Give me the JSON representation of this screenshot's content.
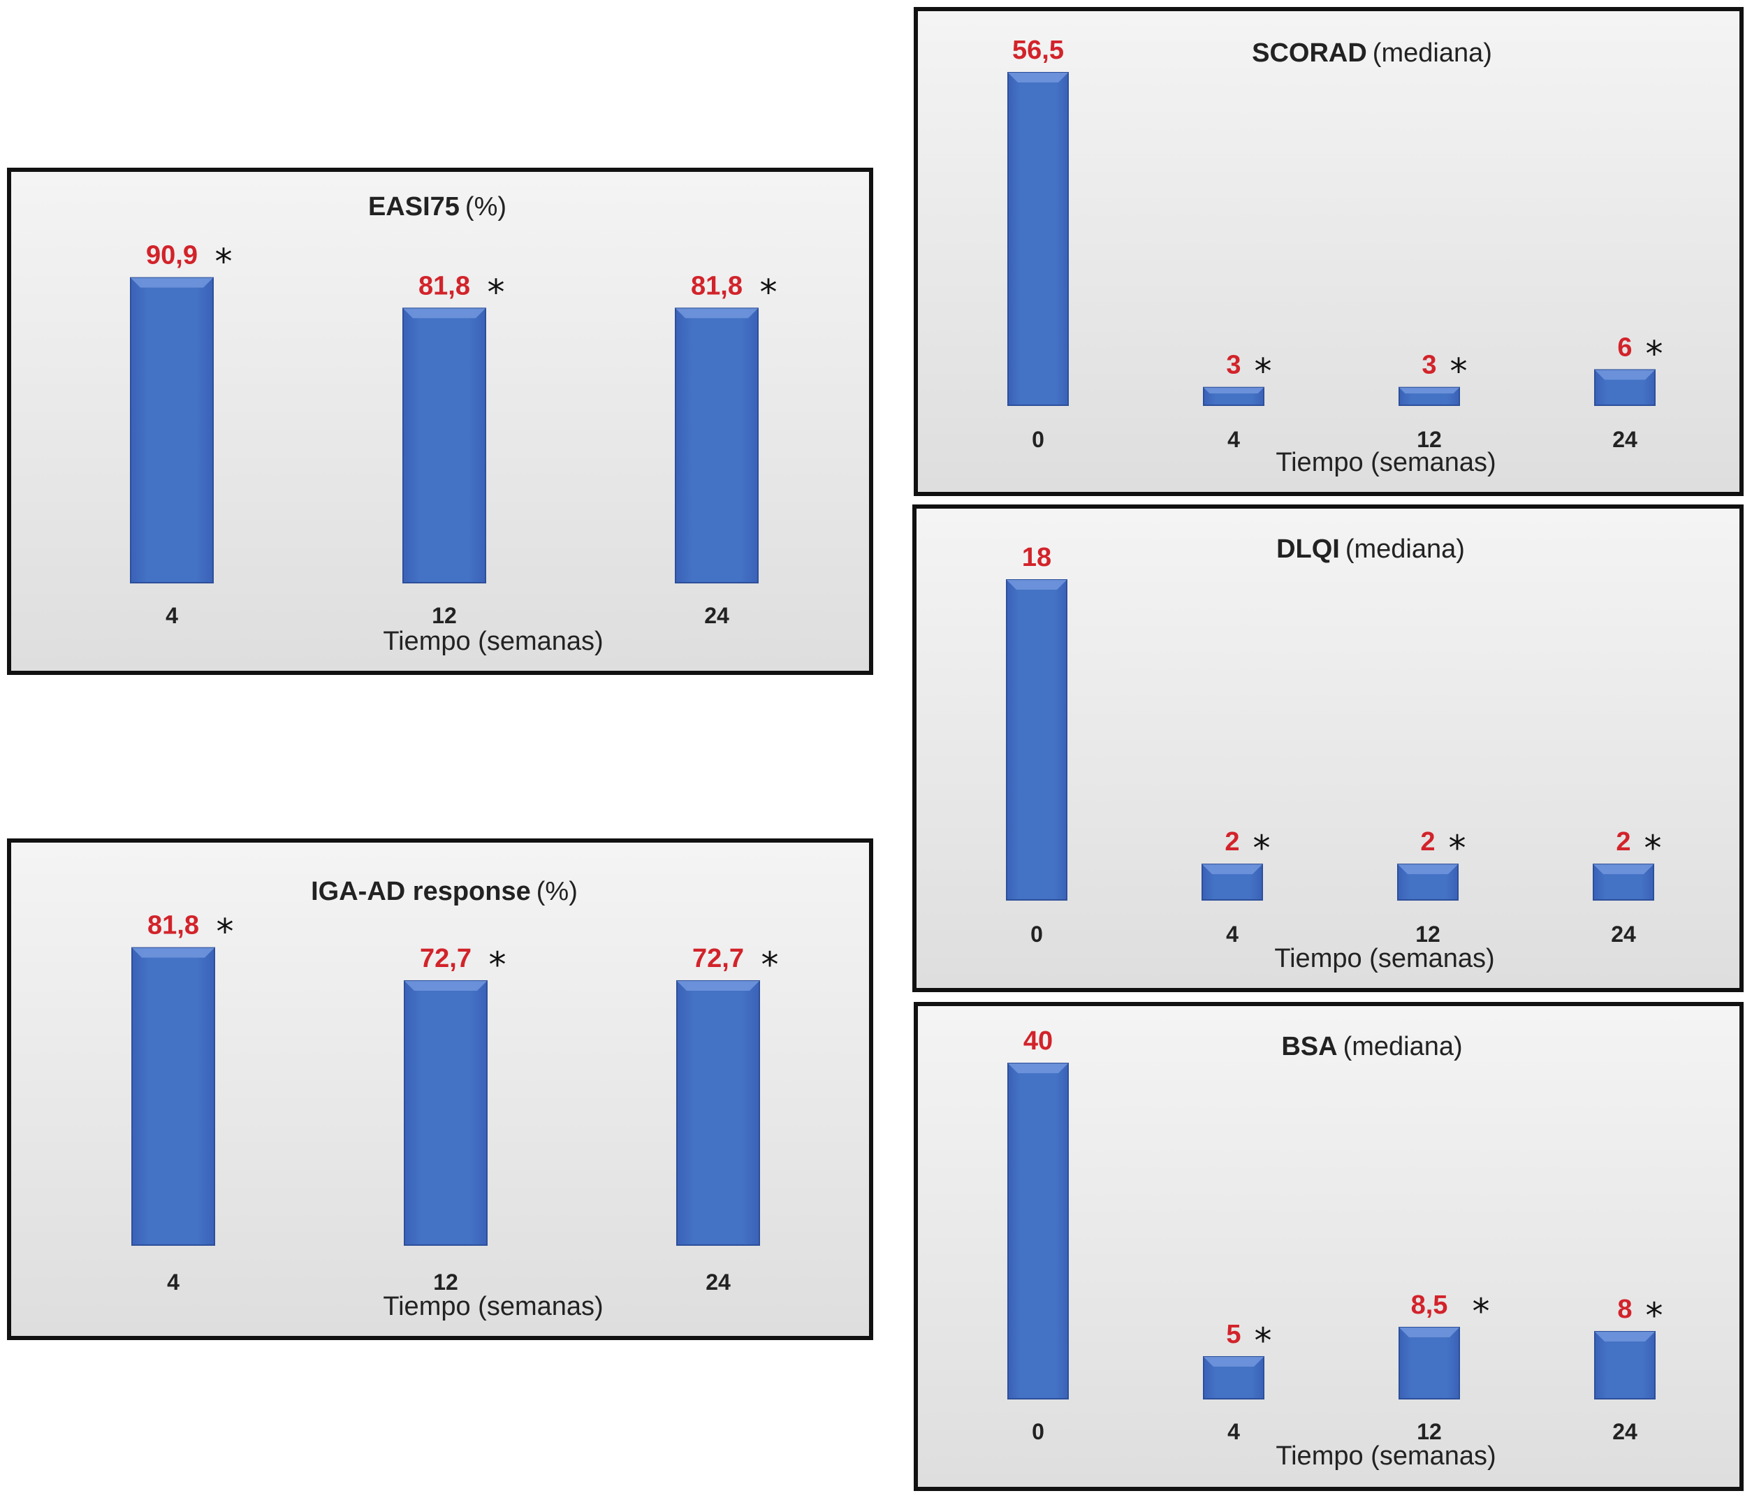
{
  "chart_data": [
    {
      "id": "easi",
      "type": "bar",
      "title": "EASI75",
      "title_suffix": "(%)",
      "categories": [
        "4",
        "12",
        "24"
      ],
      "values": [
        90.9,
        81.8,
        81.8
      ],
      "value_labels": [
        "90,9",
        "81,8",
        "81,8"
      ],
      "significant": [
        true,
        true,
        true
      ],
      "xlabel": "Tiempo (semanas)",
      "ylim": [
        0,
        100
      ],
      "grid": false,
      "bar_color": "#4472C4"
    },
    {
      "id": "iga",
      "type": "bar",
      "title": "IGA-AD response",
      "title_suffix": "(%)",
      "categories": [
        "4",
        "12",
        "24"
      ],
      "values": [
        81.8,
        72.7,
        72.7
      ],
      "value_labels": [
        "81,8",
        "72,7",
        "72,7"
      ],
      "significant": [
        true,
        true,
        true
      ],
      "xlabel": "Tiempo (semanas)",
      "ylim": [
        0,
        90
      ],
      "grid": false,
      "bar_color": "#4472C4"
    },
    {
      "id": "scorad",
      "type": "bar",
      "title": "SCORAD",
      "title_suffix": "(mediana)",
      "categories": [
        "0",
        "4",
        "12",
        "24"
      ],
      "values": [
        56.5,
        3,
        3,
        6
      ],
      "value_labels": [
        "56,5",
        "3",
        "3",
        "6"
      ],
      "significant": [
        false,
        true,
        true,
        true
      ],
      "xlabel": "Tiempo (semanas)",
      "ylim": [
        0,
        56.5
      ],
      "grid": false,
      "bar_color": "#4472C4"
    },
    {
      "id": "dlqi",
      "type": "bar",
      "title": "DLQI",
      "title_suffix": "(mediana)",
      "categories": [
        "0",
        "4",
        "12",
        "24"
      ],
      "values": [
        18,
        2,
        2,
        2
      ],
      "value_labels": [
        "18",
        "2",
        "2",
        "2"
      ],
      "significant": [
        false,
        true,
        true,
        true
      ],
      "xlabel": "Tiempo (semanas)",
      "ylim": [
        0,
        18
      ],
      "grid": false,
      "bar_color": "#4472C4"
    },
    {
      "id": "bsa",
      "type": "bar",
      "title": "BSA",
      "title_suffix": "(mediana)",
      "categories": [
        "0",
        "4",
        "12",
        "24"
      ],
      "values": [
        40,
        5,
        8.5,
        8
      ],
      "value_labels": [
        "40",
        "5",
        "8,5",
        "8"
      ],
      "significant": [
        false,
        true,
        true,
        true
      ],
      "xlabel": "Tiempo (semanas)",
      "ylim": [
        0,
        40
      ],
      "grid": false,
      "bar_color": "#4472C4"
    }
  ],
  "significance_marker": "*",
  "colors": {
    "value_label": "#d2232a",
    "bar": "#4472C4",
    "border": "#111111"
  }
}
